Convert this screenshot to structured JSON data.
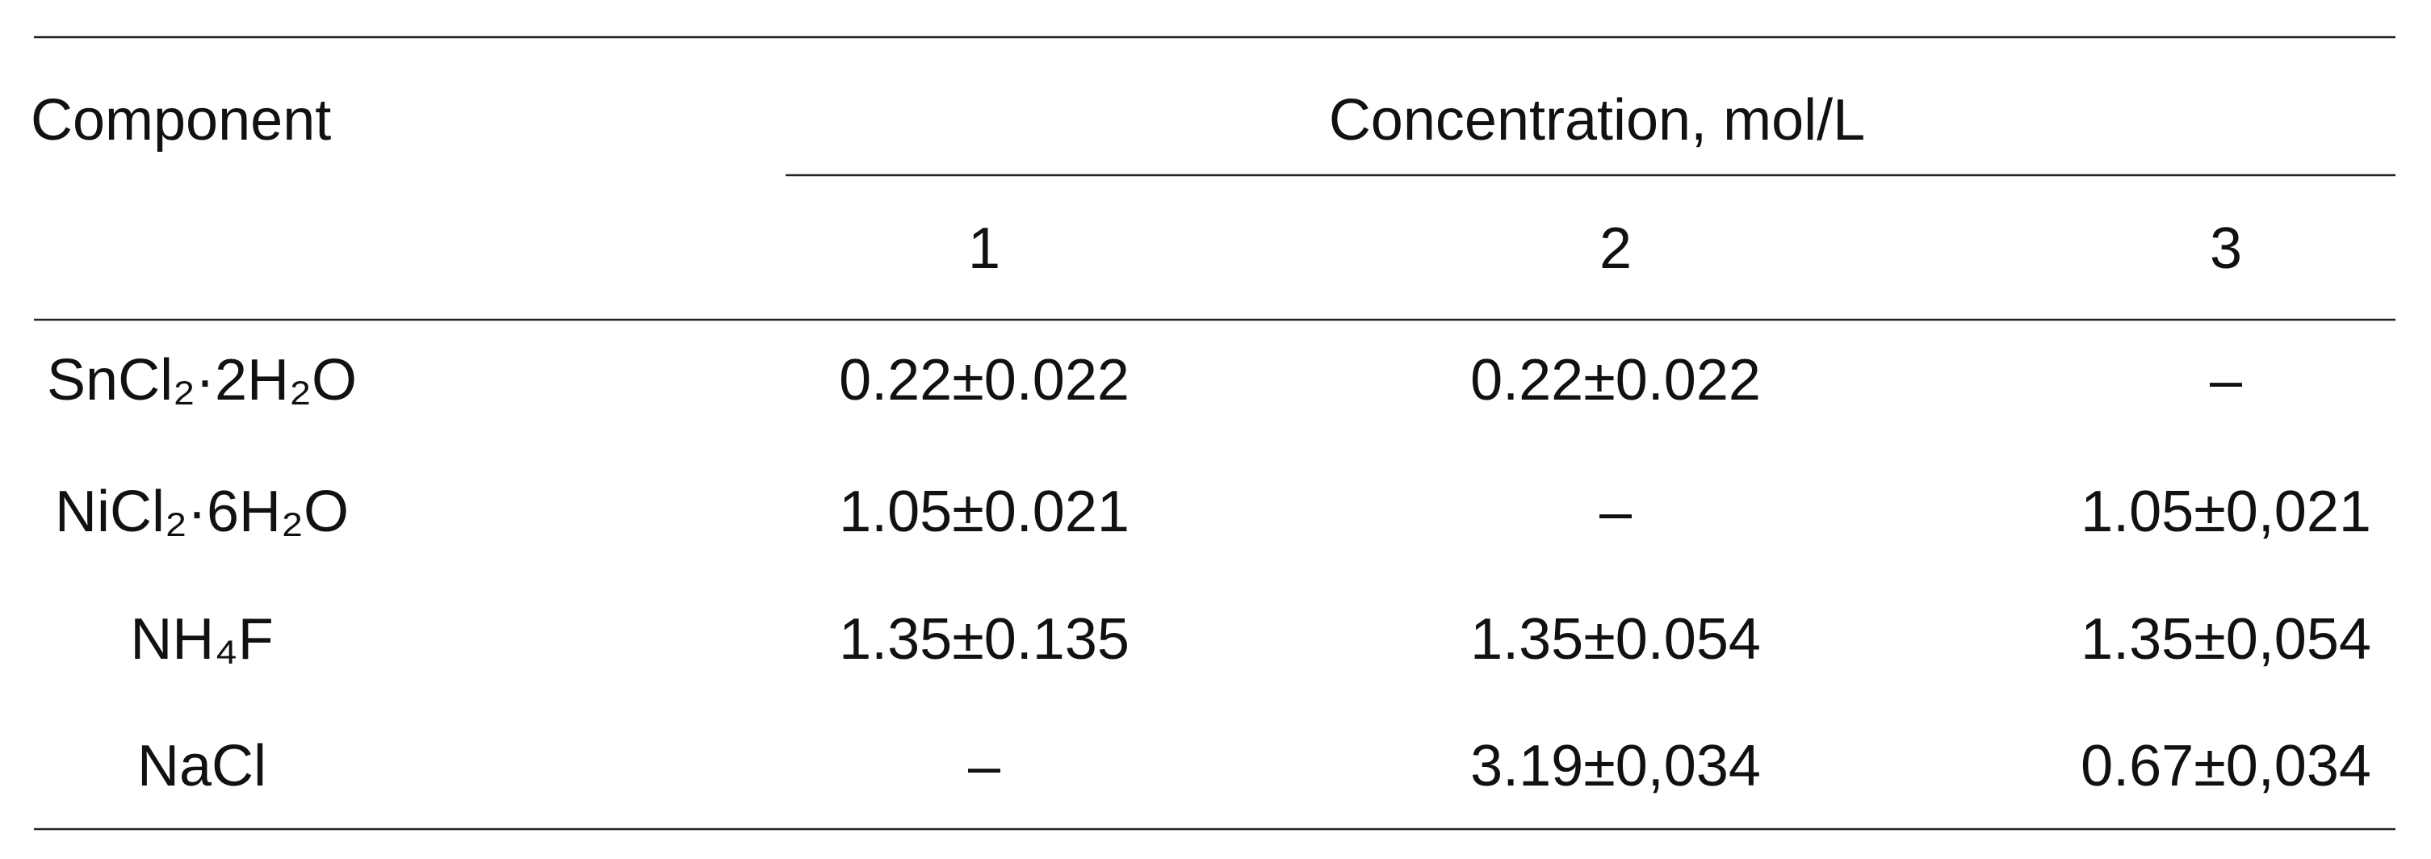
{
  "table": {
    "header": {
      "component": "Component",
      "concentration": "Concentration, mol/L",
      "columns": [
        "1",
        "2",
        "3"
      ]
    },
    "rows": [
      [
        "SnCl₂·2H₂O",
        "0.22±0.022",
        "0.22±0.022",
        "–"
      ],
      [
        "NiCl₂·6H₂O",
        "1.05±0.021",
        "–",
        "1.05±0,021"
      ],
      [
        "NH₄F",
        "1.35±0.135",
        "1.35±0.054",
        "1.35±0,054"
      ],
      [
        "NaCl",
        "–",
        "3.19±0,034",
        "0.67±0,034"
      ]
    ]
  }
}
